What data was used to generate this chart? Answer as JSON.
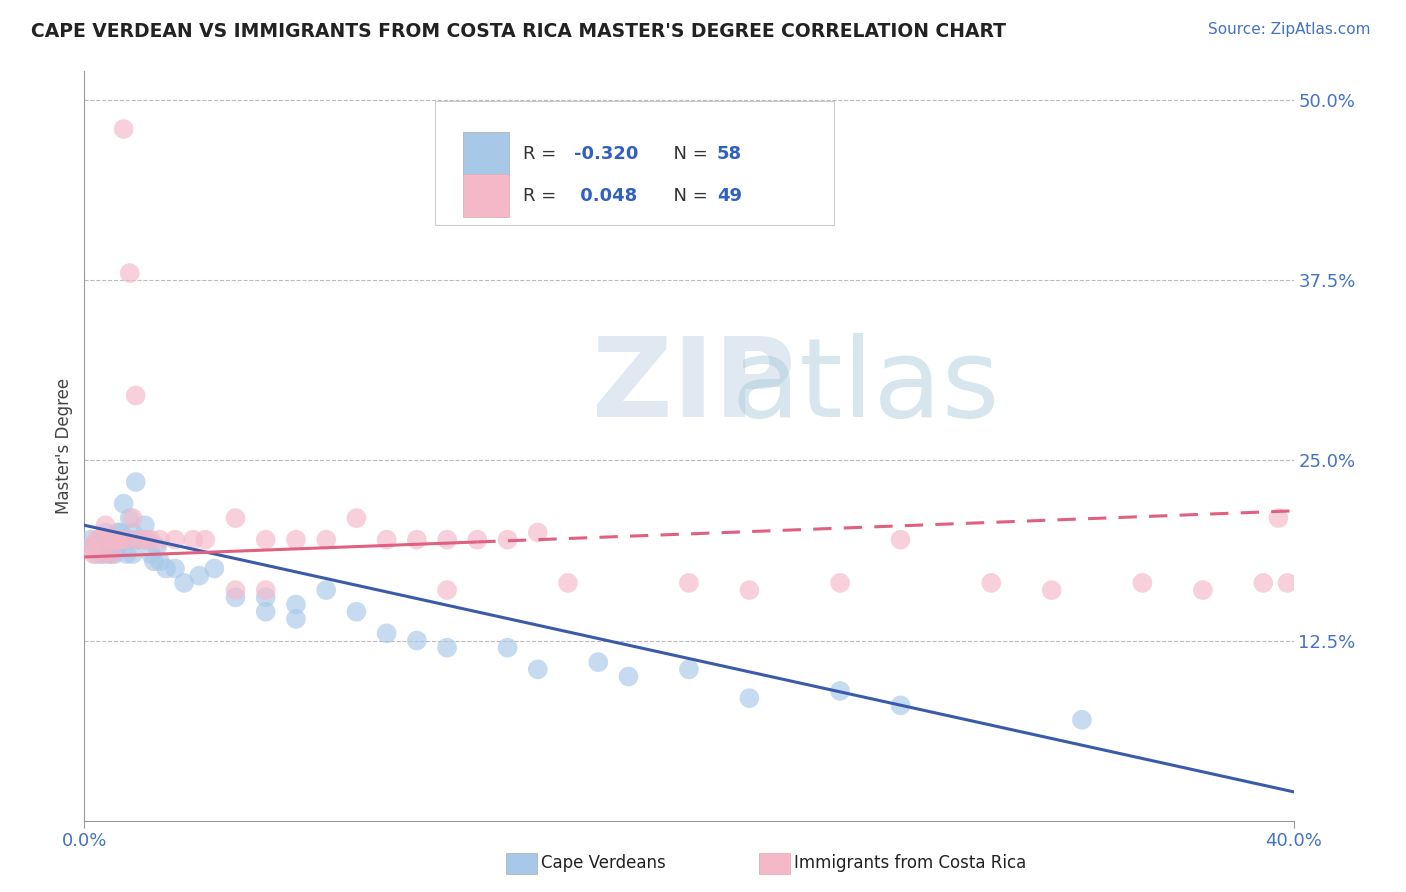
{
  "title": "CAPE VERDEAN VS IMMIGRANTS FROM COSTA RICA MASTER'S DEGREE CORRELATION CHART",
  "source": "Source: ZipAtlas.com",
  "ylabel": "Master's Degree",
  "legend_label1": "Cape Verdeans",
  "legend_label2": "Immigrants from Costa Rica",
  "R1": -0.32,
  "N1": 58,
  "R2": 0.048,
  "N2": 49,
  "color_blue": "#a8c8e8",
  "color_pink": "#f5b8c8",
  "color_blue_line": "#3a5aaa",
  "color_pink_line": "#e06080",
  "watermark_zip": "ZIP",
  "watermark_atlas": "atlas",
  "blue_scatter_x": [
    0.002,
    0.003,
    0.004,
    0.005,
    0.006,
    0.007,
    0.007,
    0.008,
    0.008,
    0.009,
    0.009,
    0.01,
    0.01,
    0.011,
    0.011,
    0.012,
    0.012,
    0.013,
    0.013,
    0.014,
    0.014,
    0.015,
    0.015,
    0.016,
    0.016,
    0.017,
    0.018,
    0.019,
    0.02,
    0.021,
    0.022,
    0.023,
    0.024,
    0.025,
    0.027,
    0.03,
    0.033,
    0.038,
    0.043,
    0.05,
    0.06,
    0.07,
    0.08,
    0.1,
    0.12,
    0.15,
    0.18,
    0.22,
    0.27,
    0.33,
    0.06,
    0.07,
    0.09,
    0.11,
    0.14,
    0.17,
    0.2,
    0.25
  ],
  "blue_scatter_y": [
    0.195,
    0.19,
    0.185,
    0.195,
    0.185,
    0.195,
    0.2,
    0.185,
    0.195,
    0.185,
    0.195,
    0.185,
    0.195,
    0.2,
    0.19,
    0.2,
    0.195,
    0.195,
    0.22,
    0.185,
    0.195,
    0.195,
    0.21,
    0.2,
    0.185,
    0.235,
    0.195,
    0.195,
    0.205,
    0.195,
    0.185,
    0.18,
    0.19,
    0.18,
    0.175,
    0.175,
    0.165,
    0.17,
    0.175,
    0.155,
    0.145,
    0.14,
    0.16,
    0.13,
    0.12,
    0.105,
    0.1,
    0.085,
    0.08,
    0.07,
    0.155,
    0.15,
    0.145,
    0.125,
    0.12,
    0.11,
    0.105,
    0.09
  ],
  "pink_scatter_x": [
    0.002,
    0.003,
    0.004,
    0.005,
    0.006,
    0.007,
    0.008,
    0.009,
    0.01,
    0.011,
    0.012,
    0.013,
    0.014,
    0.015,
    0.016,
    0.017,
    0.018,
    0.02,
    0.022,
    0.025,
    0.03,
    0.036,
    0.04,
    0.05,
    0.06,
    0.07,
    0.08,
    0.09,
    0.1,
    0.11,
    0.12,
    0.13,
    0.14,
    0.05,
    0.06,
    0.12,
    0.15,
    0.16,
    0.2,
    0.22,
    0.25,
    0.27,
    0.3,
    0.32,
    0.35,
    0.37,
    0.39,
    0.395,
    0.398
  ],
  "pink_scatter_y": [
    0.19,
    0.185,
    0.195,
    0.195,
    0.185,
    0.205,
    0.195,
    0.185,
    0.195,
    0.195,
    0.195,
    0.48,
    0.195,
    0.38,
    0.21,
    0.295,
    0.195,
    0.195,
    0.195,
    0.195,
    0.195,
    0.195,
    0.195,
    0.21,
    0.195,
    0.195,
    0.195,
    0.21,
    0.195,
    0.195,
    0.195,
    0.195,
    0.195,
    0.16,
    0.16,
    0.16,
    0.2,
    0.165,
    0.165,
    0.16,
    0.165,
    0.195,
    0.165,
    0.16,
    0.165,
    0.16,
    0.165,
    0.21,
    0.165
  ]
}
